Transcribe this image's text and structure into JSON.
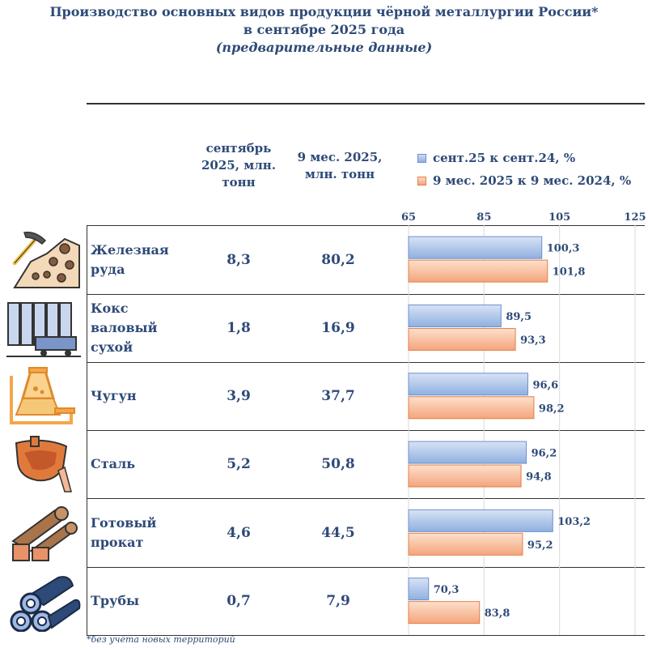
{
  "title": {
    "line1": "Производство основных видов продукции чёрной металлургии России*",
    "line2": "в сентябре 2025 года",
    "line3": "(предварительные данные)"
  },
  "columns": {
    "sep": [
      "сентябрь",
      "2025, млн.",
      "тонн"
    ],
    "nine": [
      "9 мес. 2025,",
      "млн. тонн"
    ]
  },
  "footnote": "*без учёта новых территорий",
  "rows": [
    {
      "label": [
        "Железная",
        "руда"
      ],
      "sep": "8,3",
      "nine": "80,2",
      "icon": "pickaxe-ore-icon"
    },
    {
      "label": [
        "Кокс",
        "валовый",
        "сухой"
      ],
      "sep": "1,8",
      "nine": "16,9",
      "icon": "coke-battery-icon"
    },
    {
      "label": [
        "Чугун"
      ],
      "sep": "3,9",
      "nine": "37,7",
      "icon": "blast-furnace-icon"
    },
    {
      "label": [
        "Сталь"
      ],
      "sep": "5,2",
      "nine": "50,8",
      "icon": "steel-ladle-icon"
    },
    {
      "label": [
        "Готовый",
        "прокат"
      ],
      "sep": "4,6",
      "nine": "44,5",
      "icon": "rolled-steel-icon"
    },
    {
      "label": [
        "Трубы"
      ],
      "sep": "0,7",
      "nine": "7,9",
      "icon": "pipes-icon"
    }
  ],
  "chart_data": {
    "type": "bar",
    "orientation": "horizontal",
    "categories": [
      "Железная руда",
      "Кокс валовый сухой",
      "Чугун",
      "Сталь",
      "Готовый прокат",
      "Трубы"
    ],
    "series": [
      {
        "name": "сент.25 к сент.24, %",
        "values": [
          100.3,
          89.5,
          96.6,
          96.2,
          103.2,
          70.3
        ],
        "labels": [
          "100,3",
          "89,5",
          "96,6",
          "96,2",
          "103,2",
          "70,3"
        ],
        "color": "#8fb0e0"
      },
      {
        "name": "9 мес. 2025 к 9 мес. 2024, %",
        "values": [
          101.8,
          93.3,
          98.2,
          94.8,
          95.2,
          83.8
        ],
        "labels": [
          "101,8",
          "93,3",
          "98,2",
          "94,8",
          "95,2",
          "83,8"
        ],
        "color": "#f4a57c"
      }
    ],
    "xlim": [
      65,
      125
    ],
    "ticks": [
      "65",
      "85",
      "105",
      "125"
    ],
    "tick_values": [
      65,
      85,
      105,
      125
    ],
    "grid": true,
    "legend": "top"
  }
}
